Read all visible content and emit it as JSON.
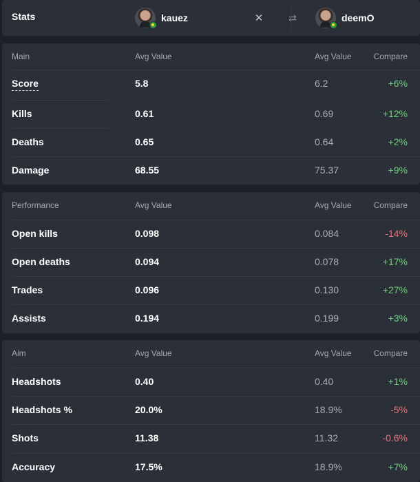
{
  "header": {
    "title": "Stats",
    "player_a": "kauez",
    "player_b": "deemO",
    "close_glyph": "✕",
    "swap_glyph": "⇄",
    "flag_color": "#2e9b3a"
  },
  "columns": {
    "avg_a": "Avg Value",
    "avg_b": "Avg Value",
    "compare": "Compare"
  },
  "sections": [
    {
      "title": "Main",
      "rows": [
        {
          "label": "Score",
          "a": "5.8",
          "b": "6.2",
          "compare": "+6%",
          "trend": "pos"
        },
        {
          "label": "Kills",
          "a": "0.61",
          "b": "0.69",
          "compare": "+12%",
          "trend": "pos"
        },
        {
          "label": "Deaths",
          "a": "0.65",
          "b": "0.64",
          "compare": "+2%",
          "trend": "pos"
        },
        {
          "label": "Damage",
          "a": "68.55",
          "b": "75.37",
          "compare": "+9%",
          "trend": "pos"
        }
      ]
    },
    {
      "title": "Performance",
      "rows": [
        {
          "label": "Open kills",
          "a": "0.098",
          "b": "0.084",
          "compare": "-14%",
          "trend": "neg"
        },
        {
          "label": "Open deaths",
          "a": "0.094",
          "b": "0.078",
          "compare": "+17%",
          "trend": "pos"
        },
        {
          "label": "Trades",
          "a": "0.096",
          "b": "0.130",
          "compare": "+27%",
          "trend": "pos"
        },
        {
          "label": "Assists",
          "a": "0.194",
          "b": "0.199",
          "compare": "+3%",
          "trend": "pos"
        }
      ]
    },
    {
      "title": "Aim",
      "rows": [
        {
          "label": "Headshots",
          "a": "0.40",
          "b": "0.40",
          "compare": "+1%",
          "trend": "pos"
        },
        {
          "label": "Headshots %",
          "a": "20.0%",
          "b": "18.9%",
          "compare": "-5%",
          "trend": "neg"
        },
        {
          "label": "Shots",
          "a": "11.38",
          "b": "11.32",
          "compare": "-0.6%",
          "trend": "neg"
        },
        {
          "label": "Accuracy",
          "a": "17.5%",
          "b": "18.9%",
          "compare": "+7%",
          "trend": "pos"
        }
      ]
    }
  ],
  "colors": {
    "positive": "#6fcf7c",
    "negative": "#e8727a",
    "panel": "#2b3038",
    "background": "#1d2127"
  }
}
